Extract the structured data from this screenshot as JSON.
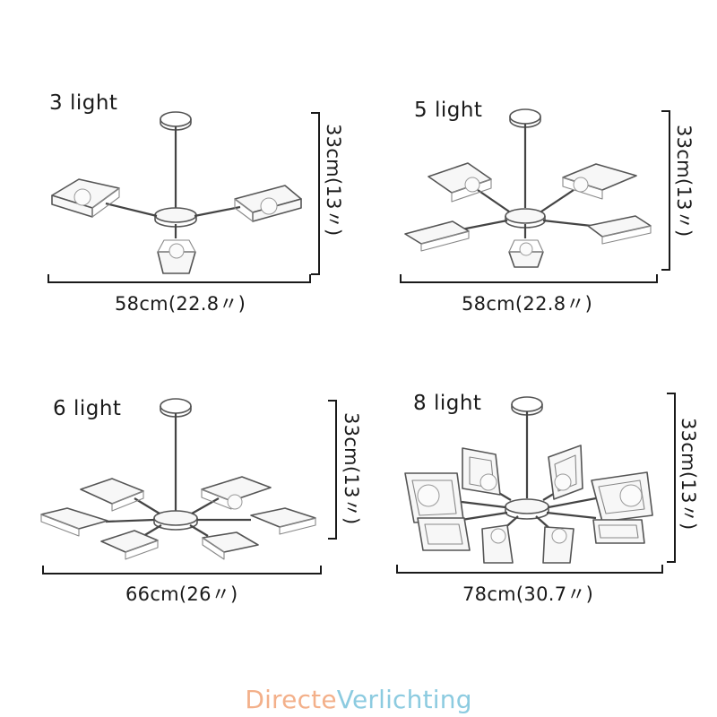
{
  "panels": [
    {
      "title": "3 light",
      "width_label": "58cm(22.8〃)",
      "height_label": "33cm(13〃)"
    },
    {
      "title": "5 light",
      "width_label": "58cm(22.8〃)",
      "height_label": "33cm(13〃)"
    },
    {
      "title": "6 light",
      "width_label": "66cm(26〃)",
      "height_label": "33cm(13〃)"
    },
    {
      "title": "8 light",
      "width_label": "78cm(30.7〃)",
      "height_label": "33cm(13〃)"
    }
  ],
  "brand": {
    "part1": "Directe",
    "part2": "Verlichting",
    "color1": "#f3b08a",
    "color2": "#8ccbe0"
  }
}
